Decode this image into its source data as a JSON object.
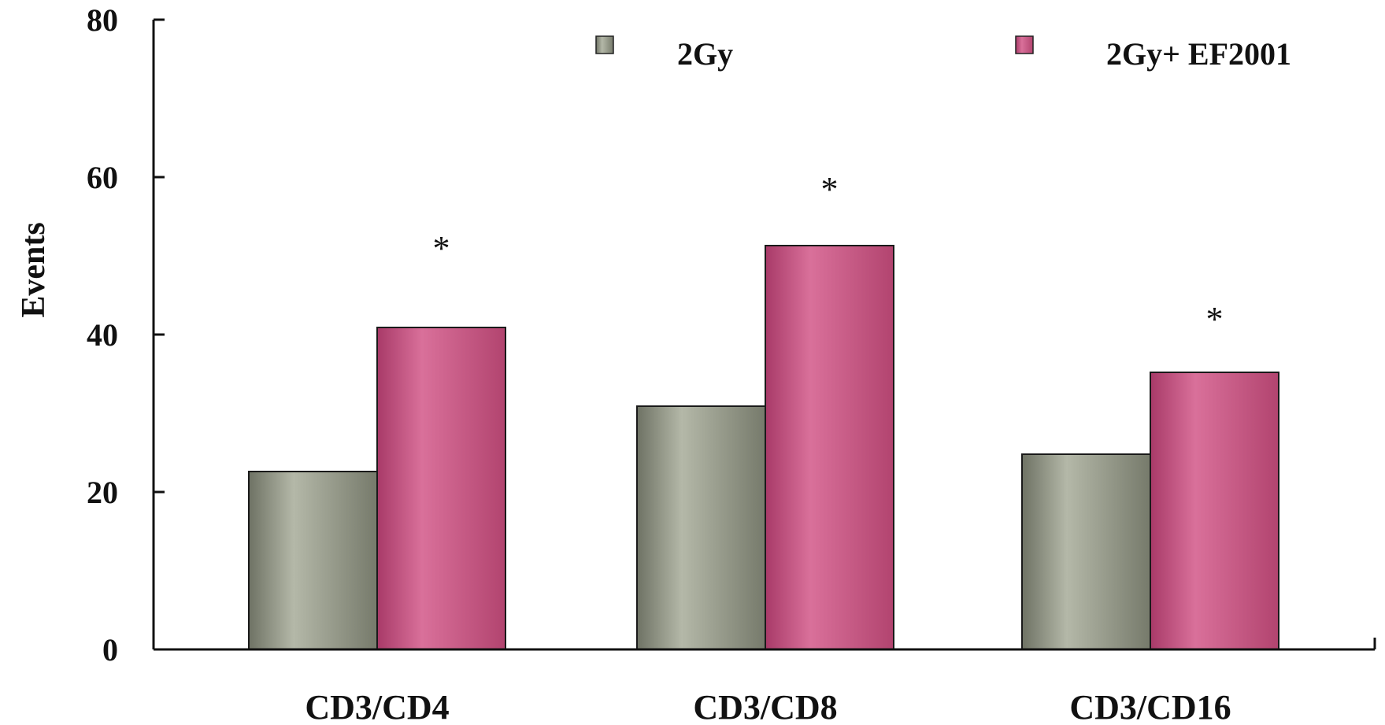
{
  "chart_data": {
    "type": "bar",
    "title": "",
    "xlabel": "",
    "ylabel": "Events",
    "ylim": [
      0,
      80
    ],
    "yticks": [
      0,
      20,
      40,
      60,
      80
    ],
    "grid": false,
    "legend_position": "top",
    "categories": [
      "CD3/CD4",
      "CD3/CD8",
      "CD3/CD16"
    ],
    "series": [
      {
        "name": "2Gy",
        "values": [
          22.6,
          30.9,
          24.8
        ]
      },
      {
        "name": "2Gy+ EF2001",
        "values": [
          40.9,
          51.3,
          35.2
        ]
      }
    ],
    "annotations": [
      {
        "text": "*",
        "category": "CD3/CD4",
        "series": "2Gy+ EF2001",
        "y": 52.5
      },
      {
        "text": "*",
        "category": "CD3/CD8",
        "series": "2Gy+ EF2001",
        "y": 60.0
      },
      {
        "text": "*",
        "category": "CD3/CD16",
        "series": "2Gy+ EF2001",
        "y": 43.5
      }
    ],
    "colors": {
      "2Gy": "#8f9484",
      "2Gy+ EF2001": "#c2507f"
    }
  }
}
